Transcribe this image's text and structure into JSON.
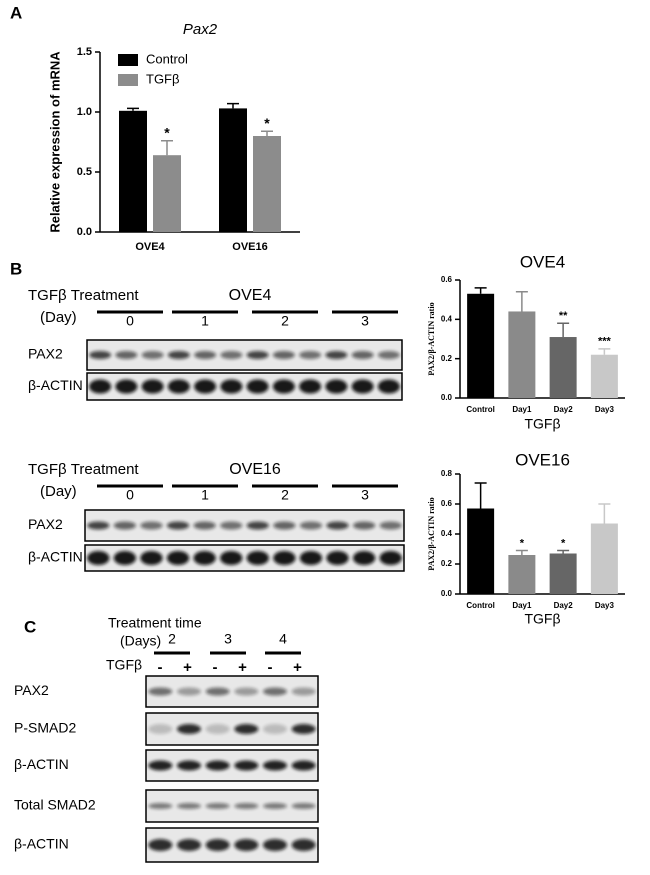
{
  "panel_labels": [
    "A",
    "B",
    "C"
  ],
  "chart_data": [
    {
      "type": "bar",
      "title": "Pax2",
      "ylabel": "Relative expression of mRNA",
      "categories": [
        "OVE4",
        "OVE16"
      ],
      "series": [
        {
          "name": "Control",
          "color": "#000000",
          "values": [
            1.01,
            1.03
          ],
          "errors": [
            0.02,
            0.04
          ],
          "significance": [
            null,
            null
          ]
        },
        {
          "name": "TGFβ",
          "color": "#8c8c8c",
          "values": [
            0.64,
            0.8
          ],
          "errors": [
            0.12,
            0.04
          ],
          "significance": [
            "*",
            "*"
          ]
        }
      ],
      "ylim": [
        0,
        1.5
      ],
      "yticks": [
        {
          "value": 0,
          "label": "0.0"
        },
        {
          "value": 0.5,
          "label": "0.5"
        },
        {
          "value": 1,
          "label": "1.0"
        },
        {
          "value": 1.5,
          "label": "1.5"
        }
      ],
      "legend": "top-left"
    },
    {
      "type": "bar",
      "title": "OVE4",
      "xlabel": "TGFβ",
      "ylabel": "PAX2/β-ACTIN ratio",
      "categories": [
        "Control",
        "Day1",
        "Day2",
        "Day3"
      ],
      "values": [
        0.53,
        0.44,
        0.31,
        0.22
      ],
      "errors": [
        0.03,
        0.1,
        0.07,
        0.03
      ],
      "colors": [
        "#000000",
        "#8a8a8a",
        "#666666",
        "#c8c8c8"
      ],
      "significance": [
        null,
        null,
        "**",
        "***"
      ],
      "ylim": [
        0,
        0.6
      ],
      "yticks": [
        {
          "value": 0,
          "label": "0.0"
        },
        {
          "value": 0.2,
          "label": "0.2"
        },
        {
          "value": 0.4,
          "label": "0.4"
        },
        {
          "value": 0.6,
          "label": "0.6"
        }
      ]
    },
    {
      "type": "bar",
      "title": "OVE16",
      "xlabel": "TGFβ",
      "ylabel": "PAX2/β-ACTIN ratio",
      "categories": [
        "Control",
        "Day1",
        "Day2",
        "Day3"
      ],
      "values": [
        0.57,
        0.26,
        0.27,
        0.47
      ],
      "errors": [
        0.17,
        0.03,
        0.02,
        0.13
      ],
      "colors": [
        "#000000",
        "#8a8a8a",
        "#666666",
        "#c8c8c8"
      ],
      "significance": [
        null,
        "*",
        "*",
        null
      ],
      "ylim": [
        0,
        0.8
      ],
      "yticks": [
        {
          "value": 0,
          "label": "0.0"
        },
        {
          "value": 0.2,
          "label": "0.2"
        },
        {
          "value": 0.4,
          "label": "0.4"
        },
        {
          "value": 0.6,
          "label": "0.6"
        },
        {
          "value": 0.8,
          "label": "0.8"
        }
      ]
    }
  ],
  "blots": [
    {
      "treatment_label": "TGFβ Treatment",
      "unit_label": "(Day)",
      "cell_line": "OVE4",
      "groups": [
        "0",
        "1",
        "2",
        "3"
      ],
      "rows": [
        "PAX2",
        "β-ACTIN"
      ]
    },
    {
      "treatment_label": "TGFβ Treatment",
      "unit_label": "(Day)",
      "cell_line": "OVE16",
      "groups": [
        "0",
        "1",
        "2",
        "3"
      ],
      "rows": [
        "PAX2",
        "β-ACTIN"
      ]
    },
    {
      "treatment_label": "Treatment time",
      "unit_label": "(Days)",
      "groups": [
        "2",
        "3",
        "4"
      ],
      "condition_label": "TGFβ",
      "conditions": [
        "-",
        "+",
        "-",
        "+",
        "-",
        "+"
      ],
      "rows": [
        "PAX2",
        "P-SMAD2",
        "β-ACTIN",
        "Total SMAD2",
        "β-ACTIN"
      ]
    }
  ]
}
